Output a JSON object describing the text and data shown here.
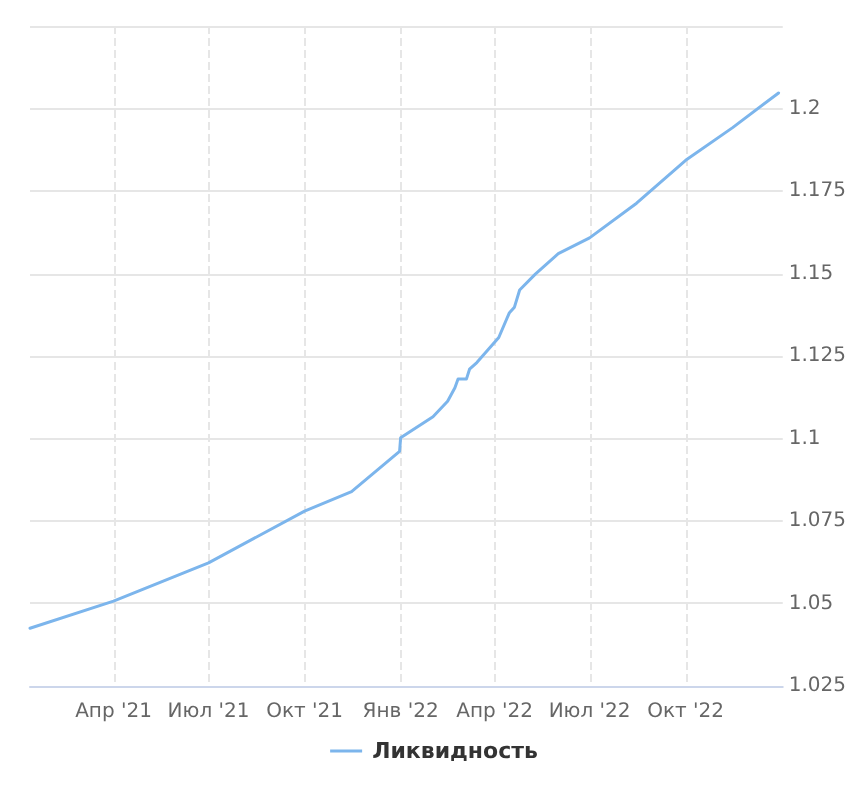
{
  "chart_data": {
    "type": "line",
    "x": [
      "2021-01-11",
      "2021-04-01",
      "2021-07-01",
      "2021-10-01",
      "2021-11-15",
      "2021-12-31",
      "2022-01-01",
      "2022-02-01",
      "2022-02-15",
      "2022-02-22",
      "2022-02-25",
      "2022-03-05",
      "2022-03-08",
      "2022-03-15",
      "2022-04-05",
      "2022-04-15",
      "2022-04-20",
      "2022-04-25",
      "2022-05-10",
      "2022-06-01",
      "2022-07-01",
      "2022-08-15",
      "2022-10-01",
      "2022-11-15",
      "2022-12-29"
    ],
    "series": [
      {
        "name": "Ликвидность",
        "color": "#7cb5ec",
        "values": [
          1.0425,
          1.0507,
          1.0623,
          1.078,
          1.0839,
          1.0961,
          1.1002,
          1.1066,
          1.1113,
          1.1154,
          1.118,
          1.118,
          1.121,
          1.123,
          1.1306,
          1.138,
          1.1398,
          1.145,
          1.1498,
          1.156,
          1.1608,
          1.1713,
          1.1843,
          1.1942,
          1.2047
        ]
      }
    ],
    "xlim": [
      "2021-01-11",
      "2023-01-02"
    ],
    "xticks": [
      {
        "value": "2021-04-01",
        "label": "Апр '21"
      },
      {
        "value": "2021-07-01",
        "label": "Июл '21"
      },
      {
        "value": "2021-10-01",
        "label": "Окт '21"
      },
      {
        "value": "2022-01-01",
        "label": "Янв '22"
      },
      {
        "value": "2022-04-01",
        "label": "Апр '22"
      },
      {
        "value": "2022-07-01",
        "label": "Июл '22"
      },
      {
        "value": "2022-10-01",
        "label": "Окт '22"
      }
    ],
    "ylim": [
      1.025,
      1.225
    ],
    "yticks": [
      1.025,
      1.05,
      1.075,
      1.1,
      1.125,
      1.15,
      1.175,
      1.2,
      {
        "value": 1.225,
        "label": null
      }
    ],
    "grid": true,
    "legend": "bottom",
    "marker": "none",
    "line_style": "solid"
  }
}
